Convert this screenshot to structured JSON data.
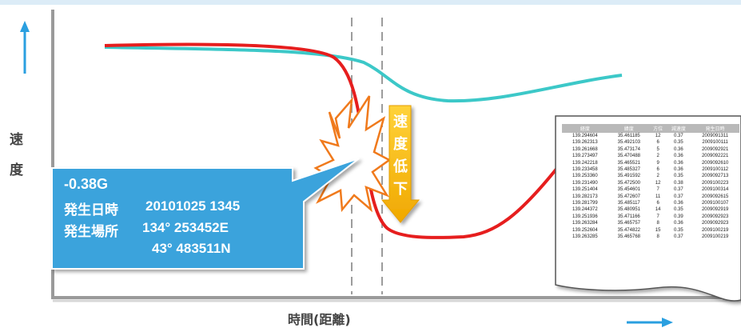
{
  "y_axis_label": "速度",
  "x_axis_label": "時間(距離)",
  "drop_label": "速度低下",
  "callout": {
    "g_value": "-0.38G",
    "datetime_label": "発生日時",
    "datetime_value": "20101025 1345",
    "location_label": "発生場所",
    "longitude": "134° 253452E",
    "latitude": "43° 483511N"
  },
  "colors": {
    "red_line": "#e61e1e",
    "teal_line": "#3cc8c8",
    "callout_fill": "#3ba3dc",
    "arrow_fill": "#f5b800",
    "axis": "#9a9a9a",
    "blue_arrow": "#2a9fe0"
  },
  "log_table": {
    "headers": [
      "経度",
      "緯度",
      "方位",
      "減速度",
      "発生日時"
    ],
    "rows": [
      [
        "139.294604",
        "35.461185",
        "12",
        "0.37",
        "2009091311"
      ],
      [
        "139.262313",
        "35.492103",
        "6",
        "0.35",
        "2009100111"
      ],
      [
        "139.261668",
        "35.473174",
        "5",
        "0.36",
        "2009092921"
      ],
      [
        "139.273497",
        "35.470488",
        "2",
        "0.36",
        "2009092221"
      ],
      [
        "139.242218",
        "35.465521",
        "9",
        "0.36",
        "2009092610"
      ],
      [
        "139.233458",
        "35.485327",
        "6",
        "0.36",
        "2009100112"
      ],
      [
        "139.253360",
        "35.491592",
        "2",
        "0.35",
        "2009092713"
      ],
      [
        "139.231490",
        "35.472500",
        "12",
        "0.38",
        "2009100223"
      ],
      [
        "139.251404",
        "35.454601",
        "7",
        "0.37",
        "2009100314"
      ],
      [
        "139.282173",
        "35.472607",
        "11",
        "0.37",
        "2009092615"
      ],
      [
        "139.281799",
        "35.485117",
        "6",
        "0.36",
        "2009100107"
      ],
      [
        "139.244372",
        "35.480951",
        "14",
        "0.35",
        "2009092919"
      ],
      [
        "139.251936",
        "35.471166",
        "7",
        "0.39",
        "2009092923"
      ],
      [
        "139.263284",
        "35.465757",
        "8",
        "0.36",
        "2009092923"
      ],
      [
        "139.252604",
        "35.474822",
        "15",
        "0.35",
        "2009100219"
      ],
      [
        "139.263285",
        "35.465768",
        "8",
        "0.37",
        "2009100219"
      ]
    ]
  }
}
